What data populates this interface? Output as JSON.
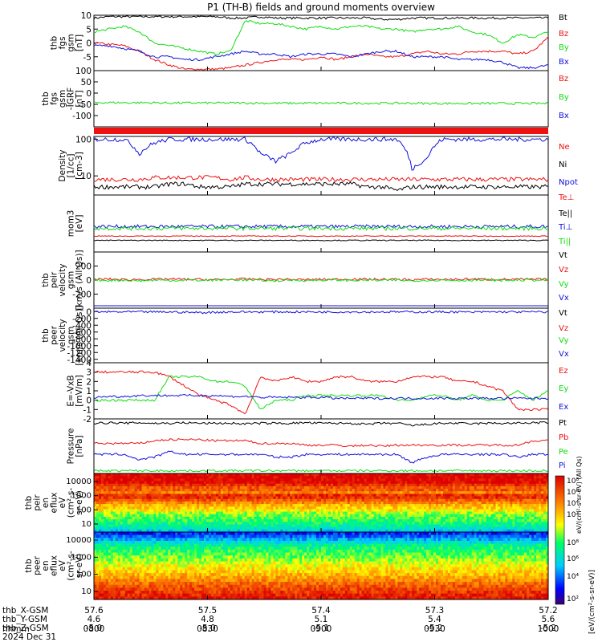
{
  "title": "P1 (TH-B) fields and ground moments overview",
  "date": "2024 Dec 31",
  "colors": {
    "black": "#000000",
    "red": "#ee1111",
    "green": "#11dd11",
    "blue": "#1111dd"
  },
  "footer": {
    "row_labels": [
      "thb_X-GSM",
      "thb_Y-GSM",
      "thb_Z-GSM",
      "hhmm"
    ],
    "columns": [
      [
        "57.6",
        "4.6",
        "-5.0",
        "0800"
      ],
      [
        "57.5",
        "4.8",
        "-5.0",
        "0830"
      ],
      [
        "57.4",
        "5.1",
        "-5.1",
        "0900"
      ],
      [
        "57.3",
        "5.4",
        "-5.2",
        "0930"
      ],
      [
        "57.2",
        "5.6",
        "-5.2",
        "1000"
      ]
    ]
  },
  "colorbar": {
    "label": "[eV/(cm²-s-sr-eV)]",
    "upper_ticks": [
      "10⁸",
      "10⁶",
      "10⁴",
      "10²"
    ],
    "lower_ticks": [
      "10⁸",
      "10⁶",
      "10⁴",
      "10²"
    ],
    "upper_label": "eV/(cm²-s-sr-eV) (All Qs)"
  },
  "chart_data": [
    {
      "type": "line",
      "id": "fgs",
      "ylabel": [
        "thb",
        "fgs",
        "gsm",
        "[nT]"
      ],
      "ylim": [
        -10,
        10
      ],
      "yticks": [
        "10",
        "5",
        "0",
        "-5"
      ],
      "series": [
        {
          "name": "Bt",
          "color": "black",
          "values": [
            9,
            9.5,
            9.5,
            9.5,
            9.5,
            9.5,
            9.5,
            9.5,
            9.5,
            9,
            9,
            9.5,
            9,
            9,
            9,
            9,
            9,
            9,
            9,
            8.5,
            8.5,
            9,
            9,
            9,
            9,
            9,
            9,
            9,
            9,
            9,
            9
          ]
        },
        {
          "name": "Bz",
          "color": "red",
          "values": [
            0,
            -0.5,
            -1,
            -3,
            -6,
            -8,
            -9.5,
            -9.5,
            -9.5,
            -9,
            -8,
            -7,
            -6,
            -6,
            -6,
            -5,
            -6,
            -5,
            -4,
            -5,
            -5,
            -4,
            -3,
            -4,
            -4,
            -3,
            -3,
            -3,
            -4,
            -3,
            2
          ]
        },
        {
          "name": "By",
          "color": "green",
          "values": [
            4,
            5,
            6,
            4,
            0,
            -1,
            -2,
            -3,
            -4,
            -3,
            8,
            7,
            7,
            6,
            5,
            6,
            5,
            6,
            6,
            5,
            5,
            4,
            5,
            5,
            6,
            4,
            3,
            0,
            3,
            2,
            4
          ]
        },
        {
          "name": "Bx",
          "color": "blue",
          "values": [
            -1,
            -1,
            -2,
            -3,
            -5,
            -5,
            -6,
            -6,
            -5,
            -4,
            -3,
            -4,
            -4,
            -5,
            -4,
            -4,
            -4,
            -5,
            -4,
            -3,
            -3,
            -5,
            -5,
            -5,
            -6,
            -6,
            -6,
            -7,
            -9,
            -9,
            -8
          ]
        }
      ]
    },
    {
      "type": "line",
      "id": "fgs_iagrf",
      "ylabel": [
        "thb",
        "fgs",
        "gsm",
        "-IGRF",
        "[nT]"
      ],
      "ylim": [
        -150,
        100
      ],
      "yticks": [
        "100",
        "50",
        "0",
        "-50",
        "-100"
      ],
      "series": [
        {
          "name": "Bz",
          "color": "red",
          "values": []
        },
        {
          "name": "By",
          "color": "green",
          "values": [
            -42,
            -42,
            -43,
            -43,
            -43,
            -44,
            -44,
            -44,
            -44,
            -44,
            -44,
            -44,
            -45,
            -45,
            -45,
            -45,
            -45,
            -45,
            -45,
            -45,
            -45,
            -45,
            -46,
            -46,
            -46,
            -46,
            -46,
            -46,
            -46,
            -46,
            -46
          ]
        },
        {
          "name": "Bx",
          "color": "blue",
          "values": []
        }
      ]
    },
    {
      "type": "line",
      "id": "density",
      "scale": "log",
      "ylabel": [
        "Density",
        "[1/cc]",
        "[cm-3]"
      ],
      "ylim": [
        3,
        120
      ],
      "yticks": [
        "100",
        "10"
      ],
      "series": [
        {
          "name": "Ne",
          "color": "red",
          "values": [
            8,
            8,
            8,
            8,
            9,
            9,
            9,
            9,
            9,
            8,
            9,
            8,
            8,
            8,
            8,
            8,
            8,
            8,
            8,
            8,
            8,
            8,
            8,
            8,
            8,
            8,
            8,
            8,
            8,
            8,
            8
          ]
        },
        {
          "name": "Ni",
          "color": "black",
          "values": [
            5,
            5,
            5,
            5,
            5,
            6,
            6,
            5,
            5,
            5,
            6,
            6,
            6,
            6,
            6,
            6,
            6,
            6,
            5,
            5,
            4,
            5,
            5,
            5,
            5,
            5,
            5,
            5,
            5,
            5,
            5
          ]
        },
        {
          "name": "Npot",
          "color": "blue",
          "values": [
            100,
            100,
            100,
            40,
            80,
            100,
            100,
            100,
            100,
            100,
            100,
            40,
            25,
            40,
            80,
            100,
            100,
            100,
            100,
            100,
            100,
            15,
            30,
            100,
            100,
            100,
            100,
            100,
            100,
            100,
            100
          ]
        }
      ]
    },
    {
      "type": "line",
      "id": "temps",
      "scale": "log",
      "ylabel": [
        "mom3",
        "[eV]"
      ],
      "ylim": [
        1,
        10
      ],
      "series": [
        {
          "name": "Te⊥",
          "color": "red",
          "values": []
        },
        {
          "name": "Te||",
          "color": "black",
          "values": []
        },
        {
          "name": "Ti⊥",
          "color": "blue",
          "values": []
        },
        {
          "name": "Ti||",
          "color": "green",
          "values": []
        }
      ]
    },
    {
      "type": "line",
      "id": "peir_v",
      "ylabel": [
        "thb",
        "peir",
        "velocity",
        "gsm",
        "[km/s (All Qs)]"
      ],
      "ylim": [
        -400,
        400
      ],
      "yticks": [
        "200",
        "0",
        "-200"
      ],
      "series": [
        {
          "name": "Vt",
          "color": "black",
          "values": []
        },
        {
          "name": "Vz",
          "color": "red",
          "values": [
            10,
            15,
            5,
            10,
            10,
            15,
            10,
            10,
            5,
            10,
            15,
            10,
            10,
            10,
            5,
            10,
            10,
            15,
            10,
            10,
            10,
            5,
            10,
            10,
            10,
            15,
            10,
            10,
            10,
            10,
            10
          ]
        },
        {
          "name": "Vy",
          "color": "green",
          "values": [
            0,
            -5,
            0,
            -10,
            0,
            -5,
            0,
            -5,
            0,
            5,
            0,
            -5,
            -10,
            0,
            -5,
            0,
            0,
            -5,
            0,
            -5,
            0,
            -10,
            0,
            0,
            -5,
            0,
            0,
            -5,
            0,
            0,
            0
          ]
        },
        {
          "name": "Vx",
          "color": "blue",
          "values": []
        }
      ]
    },
    {
      "type": "line",
      "id": "peer_v",
      "ylabel": [
        "thb",
        "peer",
        "velocity",
        "gsm",
        "[km/s (All Qs)]"
      ],
      "ylim": [
        -1500,
        100
      ],
      "yticks": [
        "0",
        "-200",
        "-400",
        "-600",
        "-800",
        "-1000",
        "-1200",
        "-1400"
      ],
      "series": [
        {
          "name": "Vt",
          "color": "black",
          "values": []
        },
        {
          "name": "Vz",
          "color": "red",
          "values": []
        },
        {
          "name": "Vy",
          "color": "green",
          "values": []
        },
        {
          "name": "Vx",
          "color": "blue",
          "values": [
            -10,
            -10,
            -10,
            -10,
            -10,
            -10,
            -20,
            -30,
            -20,
            -10,
            -10,
            -10,
            -10,
            -10,
            -10,
            -10,
            -10,
            -10,
            -10,
            -10,
            -10,
            -10,
            -10,
            -10,
            -10,
            -20,
            -10,
            -10,
            -10,
            -10,
            -10
          ]
        }
      ]
    },
    {
      "type": "line",
      "id": "exb",
      "ylabel": [
        "E=-VxB",
        "[mV/m]"
      ],
      "ylim": [
        -2,
        4
      ],
      "yticks": [
        "4",
        "3",
        "2",
        "1",
        "0",
        "-1",
        "-2"
      ],
      "series": [
        {
          "name": "Ez",
          "color": "red",
          "values": [
            3,
            3,
            3,
            3,
            3,
            2.5,
            1.5,
            0.5,
            0,
            -0.5,
            -1.5,
            2.5,
            2,
            2.5,
            2,
            2,
            2.5,
            2.5,
            2,
            2,
            2,
            2.5,
            2.5,
            2.5,
            2,
            2,
            1.5,
            1,
            -1,
            -1,
            -1
          ]
        },
        {
          "name": "Ey",
          "color": "green",
          "values": [
            0,
            0,
            0,
            0,
            0,
            2.5,
            2.5,
            2.5,
            2,
            2,
            1.5,
            -1,
            0,
            0,
            0.5,
            0.5,
            0.5,
            0.5,
            0.5,
            0.5,
            0,
            0,
            0.5,
            0.5,
            0,
            0.5,
            0,
            0,
            1,
            0,
            1
          ]
        },
        {
          "name": "Ex",
          "color": "blue",
          "values": [
            0.3,
            0.4,
            0.4,
            0.5,
            0.5,
            0.5,
            0.5,
            0.5,
            0.5,
            0.4,
            0.4,
            0.3,
            0.3,
            0.3,
            0.3,
            0.3,
            0.2,
            0.2,
            0.2,
            0.2,
            0.2,
            0.2,
            0.2,
            0.2,
            0.2,
            0.2,
            0.2,
            0.2,
            0.2,
            0.2,
            0.2
          ]
        }
      ]
    },
    {
      "type": "line",
      "id": "pressure",
      "ylabel": [
        "Pressure",
        "[nPa]"
      ],
      "ylim": [
        0,
        1
      ],
      "series": [
        {
          "name": "Pt",
          "color": "black",
          "values": [
            0.92,
            0.93,
            0.92,
            0.93,
            0.92,
            0.92,
            0.93,
            0.92,
            0.92,
            0.92,
            0.91,
            0.92,
            0.92,
            0.92,
            0.93,
            0.92,
            0.92,
            0.92,
            0.9,
            0.92,
            0.92,
            0.88,
            0.9,
            0.92,
            0.92,
            0.91,
            0.92,
            0.92,
            0.92,
            0.93,
            0.93
          ]
        },
        {
          "name": "Pb",
          "color": "red",
          "values": [
            0.55,
            0.55,
            0.55,
            0.55,
            0.6,
            0.62,
            0.62,
            0.62,
            0.6,
            0.6,
            0.6,
            0.55,
            0.55,
            0.55,
            0.52,
            0.52,
            0.52,
            0.5,
            0.52,
            0.5,
            0.52,
            0.52,
            0.52,
            0.52,
            0.52,
            0.52,
            0.52,
            0.52,
            0.52,
            0.6,
            0.6
          ]
        },
        {
          "name": "Pe",
          "color": "green",
          "values": [
            0.05,
            0.05,
            0.05,
            0.05,
            0.05,
            0.05,
            0.05,
            0.05,
            0.05,
            0.05,
            0.05,
            0.05,
            0.05,
            0.05,
            0.05,
            0.05,
            0.05,
            0.05,
            0.05,
            0.05,
            0.05,
            0.05,
            0.05,
            0.05,
            0.05,
            0.05,
            0.05,
            0.05,
            0.05,
            0.05,
            0.05
          ]
        },
        {
          "name": "Pi",
          "color": "blue",
          "values": [
            0.35,
            0.35,
            0.35,
            0.25,
            0.3,
            0.4,
            0.35,
            0.35,
            0.35,
            0.35,
            0.35,
            0.35,
            0.3,
            0.3,
            0.35,
            0.35,
            0.35,
            0.35,
            0.35,
            0.35,
            0.35,
            0.2,
            0.3,
            0.35,
            0.35,
            0.35,
            0.35,
            0.35,
            0.3,
            0.35,
            0.35
          ]
        }
      ]
    },
    {
      "type": "heatmap",
      "id": "peir_en",
      "ylabel": [
        "thb",
        "peir",
        "en",
        "eflux",
        "eV",
        "(cm²-s-",
        "sr-eV)"
      ],
      "yticks": [
        "10000",
        "1000",
        "100",
        "10"
      ],
      "rows_log_top_to_bottom": [
        9,
        9,
        9,
        9,
        8.5,
        8,
        8,
        7.5,
        8.5,
        8.5,
        8,
        7.5,
        7,
        6.8,
        6.5,
        6,
        5.8,
        5.6,
        5.4,
        5.2,
        5,
        4.6,
        4.2
      ]
    },
    {
      "type": "heatmap",
      "id": "peer_en",
      "ylabel": [
        "thb",
        "peer",
        "en",
        "eflux",
        "eV",
        "(cm²-s-",
        "sr-eV)"
      ],
      "yticks": [
        "10000",
        "1000",
        "100",
        "10"
      ],
      "rows_log_top_to_bottom": [
        3,
        3.5,
        4,
        4.5,
        5,
        5.2,
        5.4,
        5.6,
        5.8,
        6,
        6.2,
        6.4,
        6.6,
        6.8,
        7,
        7.2,
        7.5,
        7.8,
        8,
        8.2,
        8.4,
        8.6,
        8.8
      ]
    }
  ]
}
